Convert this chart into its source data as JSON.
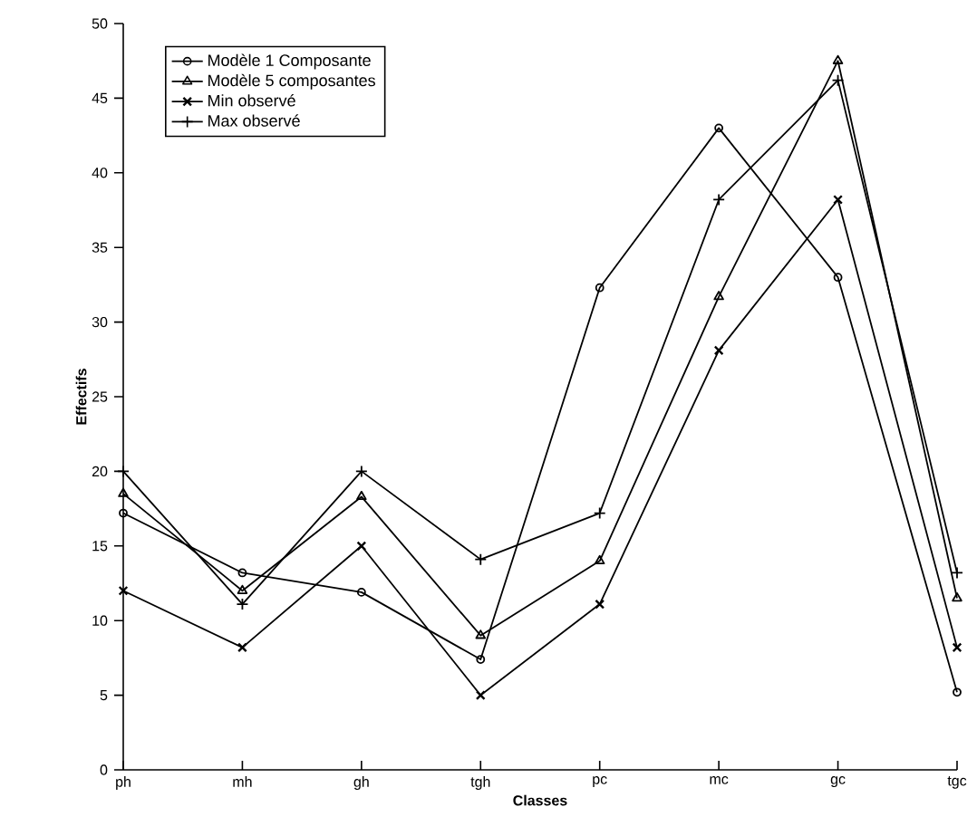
{
  "chart_data": {
    "type": "line",
    "xlabel": "Classes",
    "ylabel": "Effectifs",
    "categories": [
      "ph",
      "mh",
      "gh",
      "tgh",
      "pc",
      "mc",
      "gc",
      "tgc"
    ],
    "ylim": [
      0,
      50
    ],
    "yticks": [
      0,
      5,
      10,
      15,
      20,
      25,
      30,
      35,
      40,
      45,
      50
    ],
    "legend": "top left",
    "grid": false,
    "line_style": "solid",
    "series": [
      {
        "name": "Modèle 1 Composante",
        "color": "#000000",
        "marker": "circle",
        "values": [
          17.2,
          13.2,
          11.9,
          7.4,
          32.3,
          43,
          33,
          5.2
        ]
      },
      {
        "name": "Modèle 5 composantes",
        "color": "#000000",
        "marker": "triangle",
        "values": [
          18.5,
          12,
          18.3,
          9,
          14,
          31.7,
          47.5,
          11.5
        ]
      },
      {
        "name": "Min observé",
        "color": "#000000",
        "marker": "cross",
        "values": [
          12,
          8.2,
          15,
          5,
          11.1,
          28.1,
          38.2,
          8.2
        ]
      },
      {
        "name": "Max observé",
        "color": "#000000",
        "marker": "plus",
        "values": [
          20,
          11.1,
          20,
          14.1,
          17.2,
          38.2,
          46.2,
          13.2
        ]
      }
    ]
  }
}
